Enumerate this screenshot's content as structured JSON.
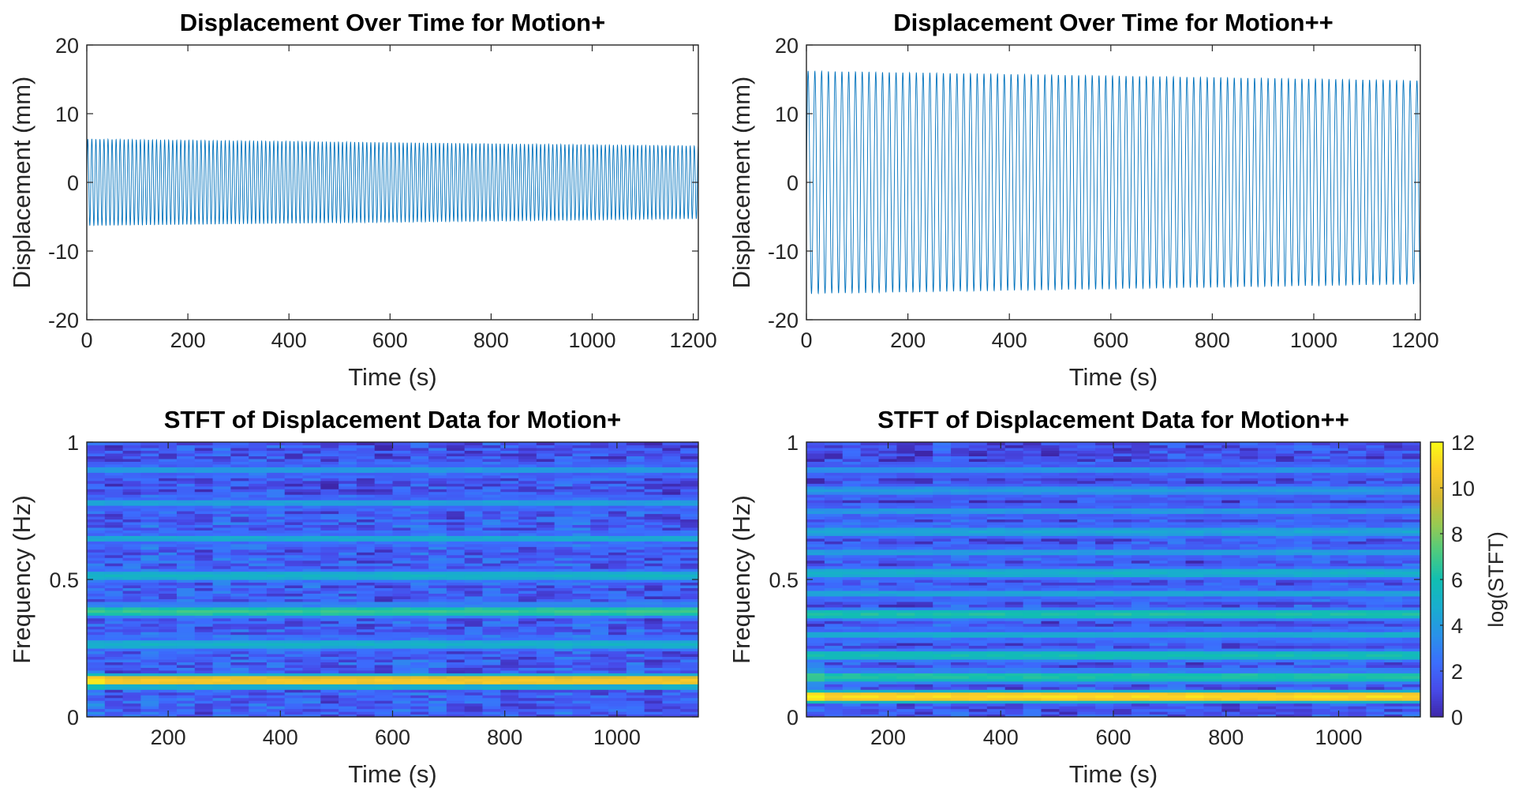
{
  "chart_data": [
    {
      "type": "line",
      "title": "Displacement Over Time for Motion+",
      "xlabel": "Time (s)",
      "ylabel": "Displacement (mm)",
      "xlim": [
        0,
        1210
      ],
      "ylim": [
        -20,
        20
      ],
      "xticks": [
        0,
        200,
        400,
        600,
        800,
        1000,
        1200
      ],
      "yticks": [
        -20,
        -10,
        0,
        10,
        20
      ],
      "series": [
        {
          "name": "displacement",
          "color": "#0072BD",
          "signal": "sinusoid",
          "dominant_frequency_hz": 0.125,
          "amplitude_start_mm": 6.3,
          "amplitude_end_mm": 5.3,
          "t_range": [
            0,
            1210
          ]
        }
      ]
    },
    {
      "type": "line",
      "title": "Displacement Over Time for Motion++",
      "xlabel": "Time (s)",
      "ylabel": "Displacement (mm)",
      "xlim": [
        0,
        1210
      ],
      "ylim": [
        -20,
        20
      ],
      "xticks": [
        0,
        200,
        400,
        600,
        800,
        1000,
        1200
      ],
      "yticks": [
        -20,
        -10,
        0,
        10,
        20
      ],
      "series": [
        {
          "name": "displacement",
          "color": "#0072BD",
          "signal": "sinusoid",
          "dominant_frequency_hz": 0.075,
          "amplitude_start_mm": 16.2,
          "amplitude_end_mm": 14.8,
          "t_range": [
            0,
            1210
          ]
        }
      ]
    },
    {
      "type": "heatmap",
      "title": "STFT of Displacement Data for Motion+",
      "xlabel": "Time (s)",
      "ylabel": "Frequency (Hz)",
      "xlim": [
        55,
        1145
      ],
      "ylim": [
        0,
        1
      ],
      "xticks": [
        200,
        400,
        600,
        800,
        1000
      ],
      "yticks": [
        0,
        0.5,
        1
      ],
      "ytick_labels": [
        "0",
        "0.5",
        "1"
      ],
      "colormap": "parula",
      "clim": [
        0,
        12
      ],
      "bands": [
        {
          "frequency_hz": 0.13,
          "log_stft": 10.8
        },
        {
          "frequency_hz": 0.265,
          "log_stft": 5.2
        },
        {
          "frequency_hz": 0.385,
          "log_stft": 6.8
        },
        {
          "frequency_hz": 0.515,
          "log_stft": 5.3
        },
        {
          "frequency_hz": 0.65,
          "log_stft": 4.9
        },
        {
          "frequency_hz": 0.78,
          "log_stft": 4.5
        },
        {
          "frequency_hz": 0.9,
          "log_stft": 4.2
        }
      ],
      "background_log_stft_range": [
        0.5,
        3.5
      ]
    },
    {
      "type": "heatmap",
      "title": "STFT of Displacement Data for Motion++",
      "xlabel": "Time (s)",
      "ylabel": "Frequency (Hz)",
      "xlim": [
        55,
        1145
      ],
      "ylim": [
        0,
        1
      ],
      "xticks": [
        200,
        400,
        600,
        800,
        1000
      ],
      "yticks": [
        0,
        0.5,
        1
      ],
      "ytick_labels": [
        "0",
        "0.5",
        "1"
      ],
      "colormap": "parula",
      "clim": [
        0,
        12
      ],
      "bands": [
        {
          "frequency_hz": 0.075,
          "log_stft": 11.2
        },
        {
          "frequency_hz": 0.15,
          "log_stft": 6.5
        },
        {
          "frequency_hz": 0.225,
          "log_stft": 6.0
        },
        {
          "frequency_hz": 0.3,
          "log_stft": 5.0
        },
        {
          "frequency_hz": 0.375,
          "log_stft": 6.3
        },
        {
          "frequency_hz": 0.45,
          "log_stft": 4.6
        },
        {
          "frequency_hz": 0.525,
          "log_stft": 5.2
        },
        {
          "frequency_hz": 0.6,
          "log_stft": 4.3
        },
        {
          "frequency_hz": 0.675,
          "log_stft": 4.6
        },
        {
          "frequency_hz": 0.75,
          "log_stft": 4.1
        },
        {
          "frequency_hz": 0.825,
          "log_stft": 4.0
        },
        {
          "frequency_hz": 0.9,
          "log_stft": 3.9
        }
      ],
      "background_log_stft_range": [
        0.3,
        3.2
      ]
    }
  ],
  "colorbar": {
    "label": "log(STFT)",
    "range": [
      0,
      12
    ],
    "ticks": [
      0,
      2,
      4,
      6,
      8,
      10,
      12
    ]
  }
}
